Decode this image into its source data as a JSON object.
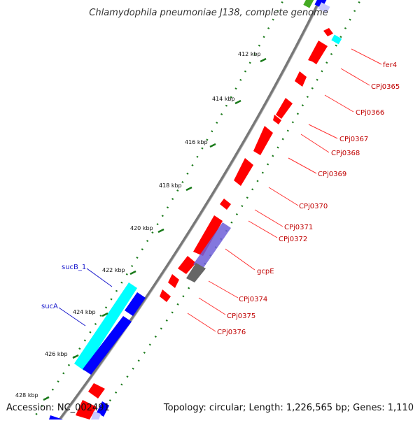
{
  "title": "Chlamydophila pneumoniae J138, complete genome",
  "footer": {
    "accession": "Accession: NC_002491",
    "summary": "Topology: circular; Length: 1,226,565 bp; Genes: 1,110"
  },
  "ticks": [
    "412 kbp",
    "414 kbp",
    "416 kbp",
    "418 kbp",
    "420 kbp",
    "422 kbp",
    "424 kbp",
    "426 kbp",
    "428 kbp"
  ],
  "gene_labels": [
    "fer4",
    "CPj0365",
    "CPj0366",
    "CPj0367",
    "CPj0368",
    "CPj0369",
    "CPj0370",
    "CPj0371",
    "CPj0372",
    "gcpE",
    "CPj0374",
    "CPj0375",
    "CPj0376",
    "sucB_1",
    "sucA"
  ],
  "colors": {
    "cds": "#ff0000",
    "cds_reverse": "#0000ff",
    "highlight_cyan": "#00ffff",
    "highlight_purple": "#6f5fd8",
    "gray_feature": "#666666",
    "backbone": "#808080",
    "tick_dots": "#1a7a1a",
    "label_red": "#c00000",
    "label_blue": "#1a1acc"
  }
}
